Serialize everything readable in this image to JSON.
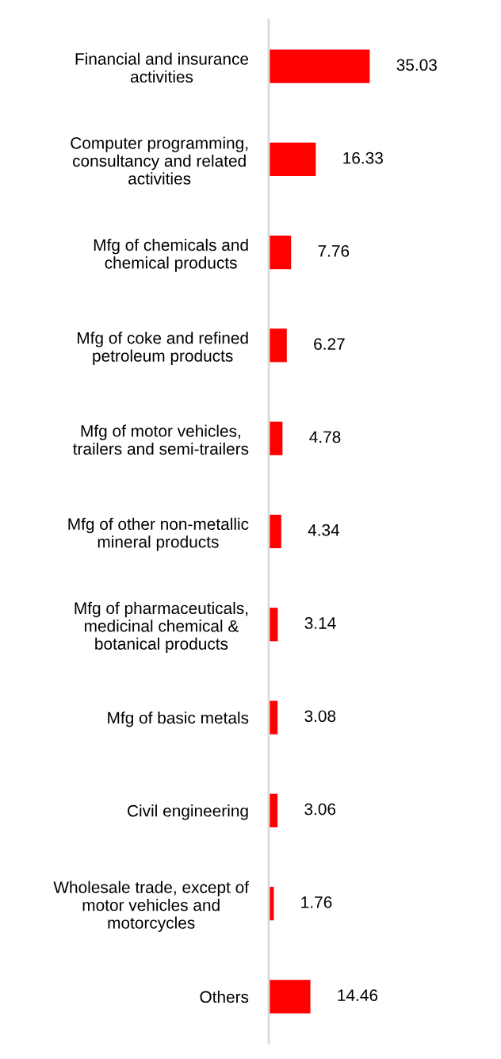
{
  "chart_data": {
    "type": "bar",
    "orientation": "horizontal",
    "data_labels": true,
    "grid": false,
    "legend": false,
    "tick_labels": "y",
    "categories": [
      "Financial and insurance\nactivities",
      "Computer programming,\nconsultancy and related\nactivities",
      "Mfg of chemicals and\nchemical products",
      "Mfg of coke and refined\npetroleum products",
      "Mfg of motor vehicles,\ntrailers and semi-trailers",
      "Mfg of other non-metallic\nmineral products",
      "Mfg of pharmaceuticals,\nmedicinal chemical &\nbotanical products",
      "Mfg of basic metals",
      "Civil engineering",
      "Wholesale trade, except of\nmotor vehicles and\nmotorcycles",
      "Others"
    ],
    "values": [
      35.03,
      16.33,
      7.76,
      6.27,
      4.78,
      4.34,
      3.14,
      3.08,
      3.06,
      1.76,
      14.46
    ],
    "color": "#ff0000"
  }
}
